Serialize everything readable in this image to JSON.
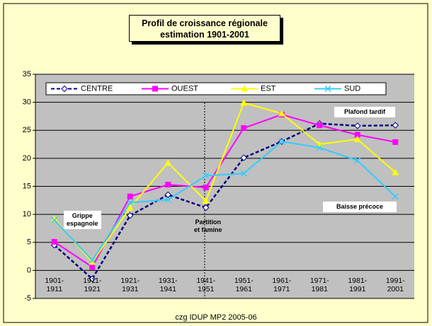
{
  "chart_data": {
    "type": "line",
    "title": "Profil de croissance régionale",
    "subtitle": "estimation 1901-2001",
    "categories": [
      "1901-\n1911",
      "1911-\n1921",
      "1921-\n1931",
      "1931-\n1941",
      "1941-\n1951",
      "1951-\n1961",
      "1961-\n1971",
      "1971-\n1981",
      "1981-\n1991",
      "1991-\n2001"
    ],
    "series": [
      {
        "name": "CENTRE",
        "color": "#000080",
        "values": [
          4.5,
          -1.5,
          9.8,
          13.5,
          11.2,
          20.1,
          23,
          26.2,
          25.8,
          25.9
        ]
      },
      {
        "name": "OUEST",
        "color": "#ff00ff",
        "values": [
          5.1,
          0.6,
          13.2,
          15.3,
          14.8,
          25.4,
          27.8,
          25.9,
          24.2,
          22.9
        ]
      },
      {
        "name": "EST",
        "color": "#ffff00",
        "values": [
          9.2,
          1.5,
          11.2,
          19.2,
          12.4,
          29.9,
          28,
          22.5,
          23.4,
          17.5
        ]
      },
      {
        "name": "SUD",
        "color": "#33ccff",
        "values": [
          9,
          1.8,
          12.1,
          12.6,
          16.9,
          17.3,
          23,
          21.9,
          19.6,
          13.2
        ]
      }
    ],
    "ylim": [
      -5,
      35
    ],
    "yticks": [
      -5,
      0,
      5,
      10,
      15,
      20,
      25,
      30,
      35
    ],
    "grid": true,
    "annotations": [
      "Grippe\nespagnole",
      "Partition\net famine",
      "Plafond tardif",
      "Baisse précoce"
    ],
    "footer": "czg IDUP MP2 2005-06"
  }
}
